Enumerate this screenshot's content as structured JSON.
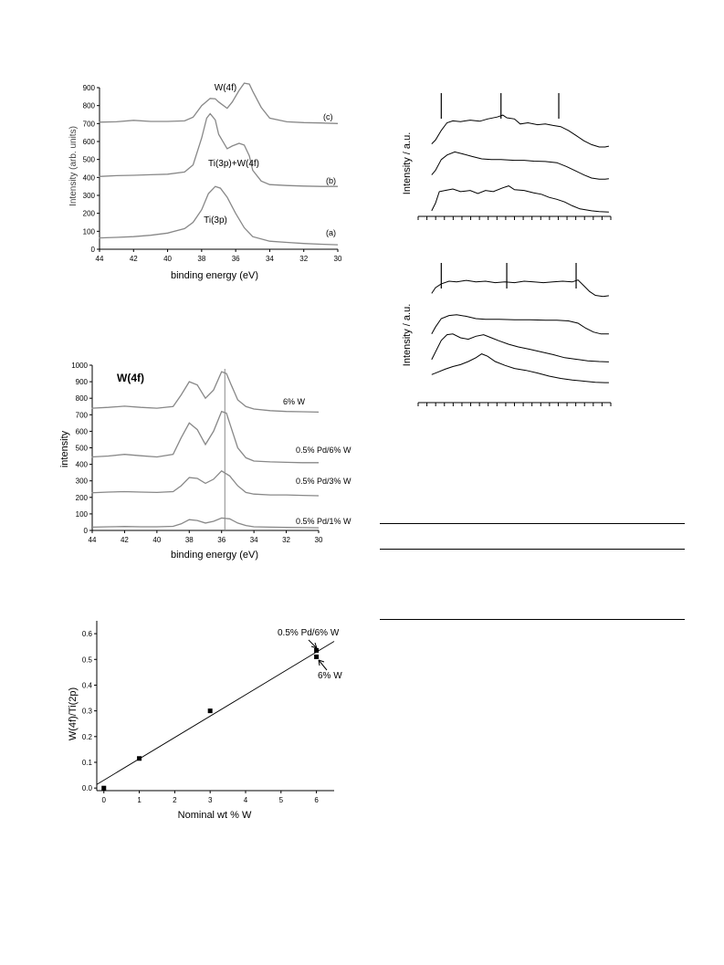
{
  "charts": {
    "xps_a": {
      "type": "line",
      "xlabel": "binding energy (eV)",
      "ylabel": "Intensity (arb. units)",
      "xlim": [
        44,
        30
      ],
      "ylim": [
        0,
        900
      ],
      "x_ticks": [
        44,
        42,
        40,
        38,
        36,
        34,
        32,
        30
      ],
      "y_ticks": [
        0,
        100,
        200,
        300,
        400,
        500,
        600,
        700,
        800,
        900
      ],
      "series": [
        {
          "label": "(a)",
          "x": [
            45,
            44,
            43,
            42,
            41,
            40,
            39,
            38.5,
            38,
            37.6,
            37.2,
            36.9,
            36.5,
            36,
            35.5,
            35,
            34,
            33,
            32,
            31,
            30
          ],
          "y": [
            60,
            63,
            66,
            70,
            78,
            90,
            115,
            150,
            220,
            310,
            350,
            340,
            290,
            200,
            120,
            70,
            45,
            38,
            32,
            28,
            25
          ]
        },
        {
          "label": "(b)",
          "x": [
            45,
            44,
            43,
            42,
            41,
            40,
            39,
            38.5,
            38,
            37.7,
            37.5,
            37.2,
            37,
            36.5,
            36.2,
            35.8,
            35.5,
            35.2,
            35,
            34.5,
            34,
            33,
            32,
            31,
            30
          ],
          "y": [
            400,
            405,
            410,
            412,
            415,
            418,
            430,
            470,
            620,
            730,
            755,
            720,
            640,
            560,
            575,
            590,
            580,
            520,
            440,
            380,
            360,
            355,
            352,
            350,
            350
          ]
        },
        {
          "label": "(c)",
          "x": [
            45,
            44,
            43,
            42,
            41,
            40,
            39,
            38.5,
            38,
            37.5,
            37.2,
            37,
            36.5,
            36.2,
            35.8,
            35.5,
            35.2,
            35,
            34.5,
            34,
            33,
            32,
            31,
            30
          ],
          "y": [
            705,
            708,
            710,
            718,
            712,
            712,
            715,
            735,
            800,
            840,
            838,
            820,
            785,
            820,
            885,
            925,
            920,
            880,
            790,
            730,
            710,
            705,
            703,
            700
          ]
        }
      ],
      "annotations": [
        "W(4f)",
        "Ti(3p)+W(4f)",
        "Ti(3p)"
      ]
    },
    "xps_b": {
      "type": "line",
      "xlabel": "binding energy (eV)",
      "ylabel": "intensity",
      "xlim": [
        44,
        30
      ],
      "ylim": [
        0,
        1000
      ],
      "x_ticks": [
        44,
        42,
        40,
        38,
        36,
        34,
        32,
        30
      ],
      "y_ticks": [
        0,
        100,
        200,
        300,
        400,
        500,
        600,
        700,
        800,
        900,
        1000
      ],
      "vline_x": 35.8,
      "series": [
        {
          "label": "0.5% Pd/1% W",
          "x": [
            45,
            44,
            43,
            42,
            41,
            40,
            39,
            38.5,
            38,
            37.5,
            37,
            36.5,
            36,
            35.5,
            35,
            34.5,
            34,
            33,
            32,
            31,
            30
          ],
          "y": [
            20,
            20,
            22,
            24,
            22,
            22,
            25,
            40,
            65,
            60,
            45,
            55,
            75,
            70,
            45,
            30,
            22,
            20,
            18,
            17,
            16
          ]
        },
        {
          "label": "0.5% Pd/3% W",
          "x": [
            45,
            44,
            43,
            42,
            41,
            40,
            39,
            38.5,
            38,
            37.5,
            37,
            36.5,
            36,
            35.5,
            35,
            34.5,
            34,
            33,
            32,
            31,
            30
          ],
          "y": [
            225,
            228,
            232,
            235,
            232,
            230,
            235,
            270,
            320,
            315,
            285,
            310,
            360,
            330,
            270,
            230,
            220,
            215,
            215,
            212,
            210
          ]
        },
        {
          "label": "0.5% Pd/6% W",
          "x": [
            45,
            44,
            43,
            42,
            41,
            40,
            39,
            38.5,
            38,
            37.5,
            37,
            36.5,
            36,
            35.7,
            35.4,
            35,
            34.5,
            34,
            33,
            32,
            31,
            30
          ],
          "y": [
            440,
            445,
            450,
            460,
            452,
            445,
            460,
            560,
            650,
            610,
            520,
            600,
            720,
            710,
            620,
            500,
            440,
            420,
            415,
            412,
            410,
            410
          ]
        },
        {
          "label": "6% W",
          "x": [
            45,
            44,
            43,
            42,
            41,
            40,
            39,
            38.5,
            38,
            37.5,
            37,
            36.5,
            36,
            35.7,
            35.4,
            35,
            34.5,
            34,
            33,
            32,
            31,
            30
          ],
          "y": [
            735,
            740,
            745,
            752,
            745,
            740,
            750,
            820,
            900,
            880,
            800,
            850,
            960,
            950,
            880,
            790,
            750,
            735,
            725,
            720,
            718,
            716
          ]
        }
      ],
      "annotations": [
        "W(4f)"
      ]
    },
    "ratio": {
      "type": "scatter",
      "xlabel": "Nominal wt % W",
      "ylabel": "W(4f)/Ti(2p)",
      "xlim": [
        -0.2,
        6.5
      ],
      "ylim": [
        -0.01,
        0.65
      ],
      "x_ticks": [
        0,
        1,
        2,
        3,
        4,
        5,
        6
      ],
      "y_ticks": [
        0.0,
        0.1,
        0.2,
        0.3,
        0.4,
        0.5,
        0.6
      ],
      "points": [
        {
          "x": 0,
          "y": 0.0
        },
        {
          "x": 1,
          "y": 0.115
        },
        {
          "x": 3,
          "y": 0.3
        },
        {
          "x": 6,
          "y": 0.535
        },
        {
          "x": 6,
          "y": 0.51
        }
      ],
      "fit_line": {
        "x": [
          -0.2,
          6.5
        ],
        "y": [
          0.014,
          0.57
        ]
      },
      "annotations": [
        "0.5% Pd/6% W",
        "6% W"
      ]
    },
    "spec_top": {
      "type": "line",
      "ylabel": "Intensity / a.u.",
      "tick_count": 22,
      "marker_x": [
        0.12,
        0.43,
        0.73
      ],
      "curves": [
        [
          [
            0.07,
            0.2
          ],
          [
            0.09,
            0.3
          ],
          [
            0.12,
            0.55
          ],
          [
            0.15,
            0.75
          ],
          [
            0.18,
            0.8
          ],
          [
            0.22,
            0.78
          ],
          [
            0.27,
            0.82
          ],
          [
            0.32,
            0.79
          ],
          [
            0.36,
            0.85
          ],
          [
            0.41,
            0.9
          ],
          [
            0.44,
            0.95
          ],
          [
            0.46,
            0.88
          ],
          [
            0.5,
            0.85
          ],
          [
            0.53,
            0.72
          ],
          [
            0.57,
            0.75
          ],
          [
            0.62,
            0.7
          ],
          [
            0.66,
            0.72
          ],
          [
            0.7,
            0.68
          ],
          [
            0.74,
            0.65
          ],
          [
            0.78,
            0.55
          ],
          [
            0.82,
            0.42
          ],
          [
            0.86,
            0.28
          ],
          [
            0.9,
            0.18
          ],
          [
            0.94,
            0.12
          ],
          [
            0.97,
            0.12
          ],
          [
            0.99,
            0.14
          ]
        ],
        [
          [
            0.07,
            0.2
          ],
          [
            0.09,
            0.32
          ],
          [
            0.12,
            0.6
          ],
          [
            0.15,
            0.72
          ],
          [
            0.19,
            0.8
          ],
          [
            0.23,
            0.75
          ],
          [
            0.28,
            0.68
          ],
          [
            0.33,
            0.62
          ],
          [
            0.38,
            0.6
          ],
          [
            0.43,
            0.6
          ],
          [
            0.5,
            0.58
          ],
          [
            0.55,
            0.58
          ],
          [
            0.6,
            0.56
          ],
          [
            0.66,
            0.55
          ],
          [
            0.72,
            0.52
          ],
          [
            0.77,
            0.42
          ],
          [
            0.82,
            0.3
          ],
          [
            0.86,
            0.2
          ],
          [
            0.9,
            0.12
          ],
          [
            0.94,
            0.09
          ],
          [
            0.97,
            0.09
          ],
          [
            0.99,
            0.1
          ]
        ],
        [
          [
            0.07,
            0.05
          ],
          [
            0.09,
            0.25
          ],
          [
            0.11,
            0.55
          ],
          [
            0.14,
            0.58
          ],
          [
            0.18,
            0.62
          ],
          [
            0.22,
            0.55
          ],
          [
            0.27,
            0.58
          ],
          [
            0.31,
            0.5
          ],
          [
            0.35,
            0.58
          ],
          [
            0.39,
            0.55
          ],
          [
            0.44,
            0.65
          ],
          [
            0.47,
            0.7
          ],
          [
            0.5,
            0.6
          ],
          [
            0.55,
            0.58
          ],
          [
            0.6,
            0.52
          ],
          [
            0.64,
            0.48
          ],
          [
            0.68,
            0.4
          ],
          [
            0.72,
            0.35
          ],
          [
            0.76,
            0.28
          ],
          [
            0.8,
            0.18
          ],
          [
            0.84,
            0.1
          ],
          [
            0.9,
            0.05
          ],
          [
            0.94,
            0.03
          ],
          [
            0.99,
            0.02
          ]
        ]
      ]
    },
    "spec_bottom": {
      "type": "line",
      "ylabel": "Intensity / a.u.",
      "tick_count": 22,
      "marker_x": [
        0.12,
        0.46,
        0.82
      ],
      "curves": [
        [
          [
            0.07,
            0.3
          ],
          [
            0.09,
            0.45
          ],
          [
            0.12,
            0.55
          ],
          [
            0.16,
            0.62
          ],
          [
            0.2,
            0.6
          ],
          [
            0.25,
            0.64
          ],
          [
            0.3,
            0.6
          ],
          [
            0.35,
            0.62
          ],
          [
            0.4,
            0.58
          ],
          [
            0.45,
            0.6
          ],
          [
            0.5,
            0.58
          ],
          [
            0.55,
            0.62
          ],
          [
            0.6,
            0.6
          ],
          [
            0.65,
            0.58
          ],
          [
            0.7,
            0.6
          ],
          [
            0.75,
            0.62
          ],
          [
            0.8,
            0.6
          ],
          [
            0.83,
            0.65
          ],
          [
            0.86,
            0.5
          ],
          [
            0.89,
            0.35
          ],
          [
            0.92,
            0.25
          ],
          [
            0.96,
            0.22
          ],
          [
            0.99,
            0.24
          ]
        ],
        [
          [
            0.07,
            0.1
          ],
          [
            0.09,
            0.28
          ],
          [
            0.12,
            0.5
          ],
          [
            0.16,
            0.58
          ],
          [
            0.2,
            0.6
          ],
          [
            0.25,
            0.56
          ],
          [
            0.3,
            0.5
          ],
          [
            0.35,
            0.48
          ],
          [
            0.42,
            0.48
          ],
          [
            0.5,
            0.47
          ],
          [
            0.58,
            0.47
          ],
          [
            0.66,
            0.46
          ],
          [
            0.72,
            0.46
          ],
          [
            0.78,
            0.44
          ],
          [
            0.83,
            0.38
          ],
          [
            0.87,
            0.25
          ],
          [
            0.91,
            0.15
          ],
          [
            0.95,
            0.1
          ],
          [
            0.99,
            0.1
          ]
        ],
        [
          [
            0.07,
            0.05
          ],
          [
            0.09,
            0.25
          ],
          [
            0.12,
            0.55
          ],
          [
            0.15,
            0.7
          ],
          [
            0.18,
            0.72
          ],
          [
            0.22,
            0.62
          ],
          [
            0.26,
            0.58
          ],
          [
            0.3,
            0.66
          ],
          [
            0.34,
            0.7
          ],
          [
            0.38,
            0.62
          ],
          [
            0.42,
            0.54
          ],
          [
            0.47,
            0.45
          ],
          [
            0.52,
            0.38
          ],
          [
            0.58,
            0.32
          ],
          [
            0.64,
            0.25
          ],
          [
            0.7,
            0.18
          ],
          [
            0.76,
            0.1
          ],
          [
            0.82,
            0.06
          ],
          [
            0.88,
            0.02
          ],
          [
            0.94,
            0.0
          ],
          [
            0.99,
            -0.01
          ]
        ],
        [
          [
            0.07,
            0.04
          ],
          [
            0.1,
            0.1
          ],
          [
            0.14,
            0.18
          ],
          [
            0.18,
            0.25
          ],
          [
            0.22,
            0.3
          ],
          [
            0.26,
            0.38
          ],
          [
            0.3,
            0.48
          ],
          [
            0.33,
            0.58
          ],
          [
            0.36,
            0.52
          ],
          [
            0.4,
            0.38
          ],
          [
            0.45,
            0.28
          ],
          [
            0.5,
            0.2
          ],
          [
            0.56,
            0.15
          ],
          [
            0.62,
            0.08
          ],
          [
            0.68,
            0.0
          ],
          [
            0.74,
            -0.06
          ],
          [
            0.8,
            -0.1
          ],
          [
            0.86,
            -0.13
          ],
          [
            0.92,
            -0.16
          ],
          [
            0.97,
            -0.17
          ],
          [
            0.99,
            -0.17
          ]
        ]
      ]
    }
  },
  "texts": {
    "a_annot_w4f": "W(4f)",
    "a_annot_ti_w": "Ti(3p)+W(4f)",
    "a_annot_ti": "Ti(3p)",
    "a_label_c": "(c)",
    "a_label_b": "(b)",
    "a_label_a": "(a)",
    "a_xlabel": "binding energy (eV)",
    "a_ylabel": "Intensity (arb. units)",
    "b_title": "W(4f)",
    "b_label_6w": "6% W",
    "b_label_pd6w": "0.5% Pd/6% W",
    "b_label_pd3w": "0.5% Pd/3% W",
    "b_label_pd1w": "0.5% Pd/1% W",
    "b_xlabel": "binding energy (eV)",
    "b_ylabel": "intensity",
    "r_xlabel": "Nominal wt % W",
    "r_ylabel": "W(4f)/Ti(2p)",
    "r_annot_pd6w": "0.5% Pd/6% W",
    "r_annot_6w": "6% W",
    "s1_ylabel": "Intensity / a.u.",
    "s2_ylabel": "Intensity / a.u."
  }
}
